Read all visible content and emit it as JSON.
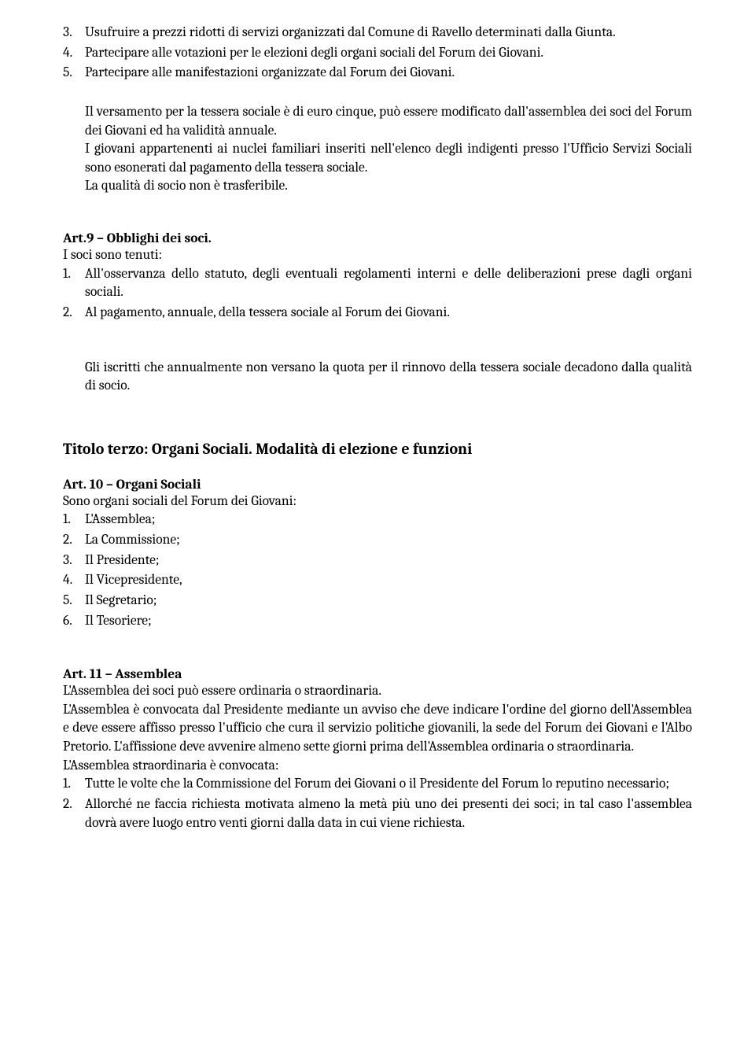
{
  "list_top": [
    {
      "n": "3.",
      "t": "Usufruire a prezzi ridotti di servizi organizzati dal Comune di Ravello determinati dalla Giunta."
    },
    {
      "n": "4.",
      "t": "Partecipare alle votazioni per le elezioni degli organi sociali del Forum dei Giovani."
    },
    {
      "n": "5.",
      "t": "Partecipare alle manifestazioni organizzate dal Forum dei Giovani."
    }
  ],
  "versamento_p1": "Il versamento per la tessera sociale è di euro cinque, può essere modificato dall'assemblea dei soci del Forum dei Giovani ed ha validità annuale.",
  "versamento_p2": "I giovani appartenenti ai nuclei familiari inseriti nell'elenco degli indigenti presso l'Ufficio Servizi Sociali sono esonerati dal pagamento della tessera sociale.",
  "versamento_p3": "La qualità di socio non è trasferibile.",
  "art9_head": "Art.9 – Obblighi  dei soci.",
  "art9_intro": "I soci sono tenuti:",
  "art9_list": [
    {
      "n": "1.",
      "t": "All'osservanza dello statuto, degli eventuali regolamenti interni e delle deliberazioni prese dagli organi sociali."
    },
    {
      "n": "2.",
      "t": "Al pagamento, annuale, della tessera sociale al Forum dei Giovani."
    }
  ],
  "art9_after": "Gli iscritti che annualmente non versano la quota per il rinnovo della tessera sociale decadono dalla qualità di socio.",
  "title3": "Titolo terzo: Organi Sociali. Modalità di elezione e funzioni",
  "art10_head": "Art. 10 – Organi Sociali",
  "art10_intro": "Sono organi sociali del Forum dei Giovani:",
  "art10_list": [
    {
      "n": "1.",
      "t": "L'Assemblea;"
    },
    {
      "n": "2.",
      "t": "La Commissione;"
    },
    {
      "n": "3.",
      "t": "Il Presidente;"
    },
    {
      "n": "4.",
      "t": "Il Vicepresidente,"
    },
    {
      "n": "5.",
      "t": "Il Segretario;"
    },
    {
      "n": "6.",
      "t": "Il Tesoriere;"
    }
  ],
  "art11_head": "Art. 11 – Assemblea",
  "art11_p1": "L'Assemblea dei soci può essere ordinaria o straordinaria.",
  "art11_p2": "L'Assemblea è convocata dal Presidente mediante un avviso che deve indicare l'ordine del giorno dell'Assemblea e deve essere affisso presso l'ufficio che cura il servizio politiche giovanili, la sede del Forum dei Giovani e l'Albo Pretorio. L'affissione deve avvenire almeno sette giorni prima dell'Assemblea ordinaria o straordinaria.",
  "art11_p3": "L'Assemblea straordinaria è convocata:",
  "art11_list": [
    {
      "n": "1.",
      "t": "Tutte le volte che la Commissione del Forum dei Giovani o il Presidente del Forum lo reputino necessario;"
    },
    {
      "n": "2.",
      "t": "Allorché ne faccia richiesta motivata almeno la metà più uno dei presenti dei soci; in tal caso l'assemblea dovrà avere luogo entro venti giorni dalla data in cui viene richiesta."
    }
  ]
}
